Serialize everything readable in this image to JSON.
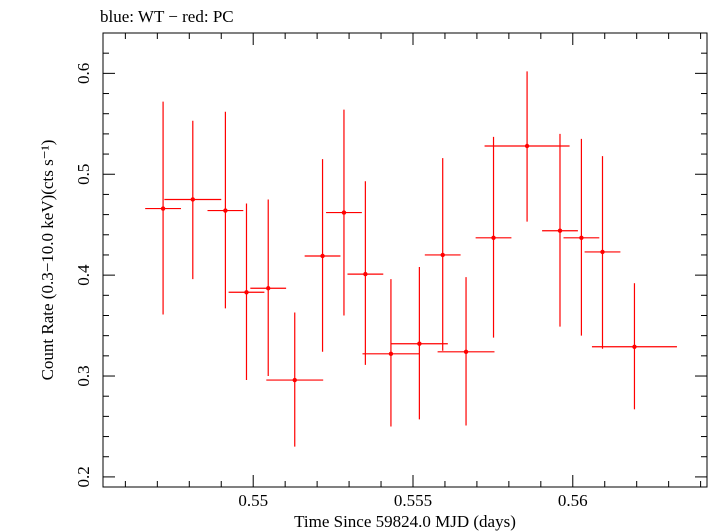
{
  "chart_data": {
    "type": "scatter",
    "title": "blue: WT − red: PC",
    "xlabel": "Time Since 59824.0 MJD (days)",
    "ylabel": "Count Rate (0.3−10.0 keV)(cts s⁻¹)",
    "xlim": [
      0.5453,
      0.5642
    ],
    "ylim": [
      0.19,
      0.64
    ],
    "x_ticks": [
      0.55,
      0.555,
      0.56
    ],
    "x_tick_labels": [
      "0.55",
      "0.555",
      "0.56"
    ],
    "y_ticks": [
      0.2,
      0.3,
      0.4,
      0.5,
      0.6
    ],
    "y_tick_labels": [
      "0.2",
      "0.3",
      "0.4",
      "0.5",
      "0.6"
    ],
    "grid": false,
    "colors": {
      "PC": "#ff0000",
      "WT": "#0000ff"
    },
    "series": [
      {
        "color": "#ff0000",
        "points": [
          {
            "x": 0.54718,
            "xerr": 0.00056,
            "y": 0.466,
            "yerr_hi": 0.106,
            "yerr_lo": 0.105
          },
          {
            "x": 0.54811,
            "xerr": 0.00089,
            "y": 0.475,
            "yerr_hi": 0.078,
            "yerr_lo": 0.079
          },
          {
            "x": 0.54913,
            "xerr": 0.00056,
            "y": 0.464,
            "yerr_hi": 0.098,
            "yerr_lo": 0.097
          },
          {
            "x": 0.54979,
            "xerr": 0.00056,
            "y": 0.383,
            "yerr_hi": 0.088,
            "yerr_lo": 0.087
          },
          {
            "x": 0.55047,
            "xerr": 0.00056,
            "y": 0.387,
            "yerr_hi": 0.088,
            "yerr_lo": 0.087
          },
          {
            "x": 0.5513,
            "xerr": 0.00089,
            "y": 0.296,
            "yerr_hi": 0.067,
            "yerr_lo": 0.066
          },
          {
            "x": 0.55217,
            "xerr": 0.00056,
            "y": 0.419,
            "yerr_hi": 0.096,
            "yerr_lo": 0.095
          },
          {
            "x": 0.55284,
            "xerr": 0.00056,
            "y": 0.462,
            "yerr_hi": 0.102,
            "yerr_lo": 0.102
          },
          {
            "x": 0.55351,
            "xerr": 0.00056,
            "y": 0.401,
            "yerr_hi": 0.092,
            "yerr_lo": 0.09
          },
          {
            "x": 0.55431,
            "xerr": 0.00089,
            "y": 0.322,
            "yerr_hi": 0.074,
            "yerr_lo": 0.072
          },
          {
            "x": 0.5552,
            "xerr": 0.00089,
            "y": 0.332,
            "yerr_hi": 0.076,
            "yerr_lo": 0.075
          },
          {
            "x": 0.55593,
            "xerr": 0.00056,
            "y": 0.42,
            "yerr_hi": 0.096,
            "yerr_lo": 0.095
          },
          {
            "x": 0.55666,
            "xerr": 0.00089,
            "y": 0.324,
            "yerr_hi": 0.074,
            "yerr_lo": 0.073
          },
          {
            "x": 0.55752,
            "xerr": 0.00056,
            "y": 0.437,
            "yerr_hi": 0.1,
            "yerr_lo": 0.099
          },
          {
            "x": 0.55857,
            "xerr": 0.00133,
            "y": 0.528,
            "yerr_hi": 0.074,
            "yerr_lo": 0.075
          },
          {
            "x": 0.5596,
            "xerr": 0.00056,
            "y": 0.444,
            "yerr_hi": 0.096,
            "yerr_lo": 0.095
          },
          {
            "x": 0.56027,
            "xerr": 0.00056,
            "y": 0.437,
            "yerr_hi": 0.098,
            "yerr_lo": 0.097
          },
          {
            "x": 0.56093,
            "xerr": 0.00056,
            "y": 0.423,
            "yerr_hi": 0.095,
            "yerr_lo": 0.096
          },
          {
            "x": 0.56193,
            "xerr": 0.00133,
            "y": 0.329,
            "yerr_hi": 0.063,
            "yerr_lo": 0.062
          }
        ]
      }
    ]
  }
}
